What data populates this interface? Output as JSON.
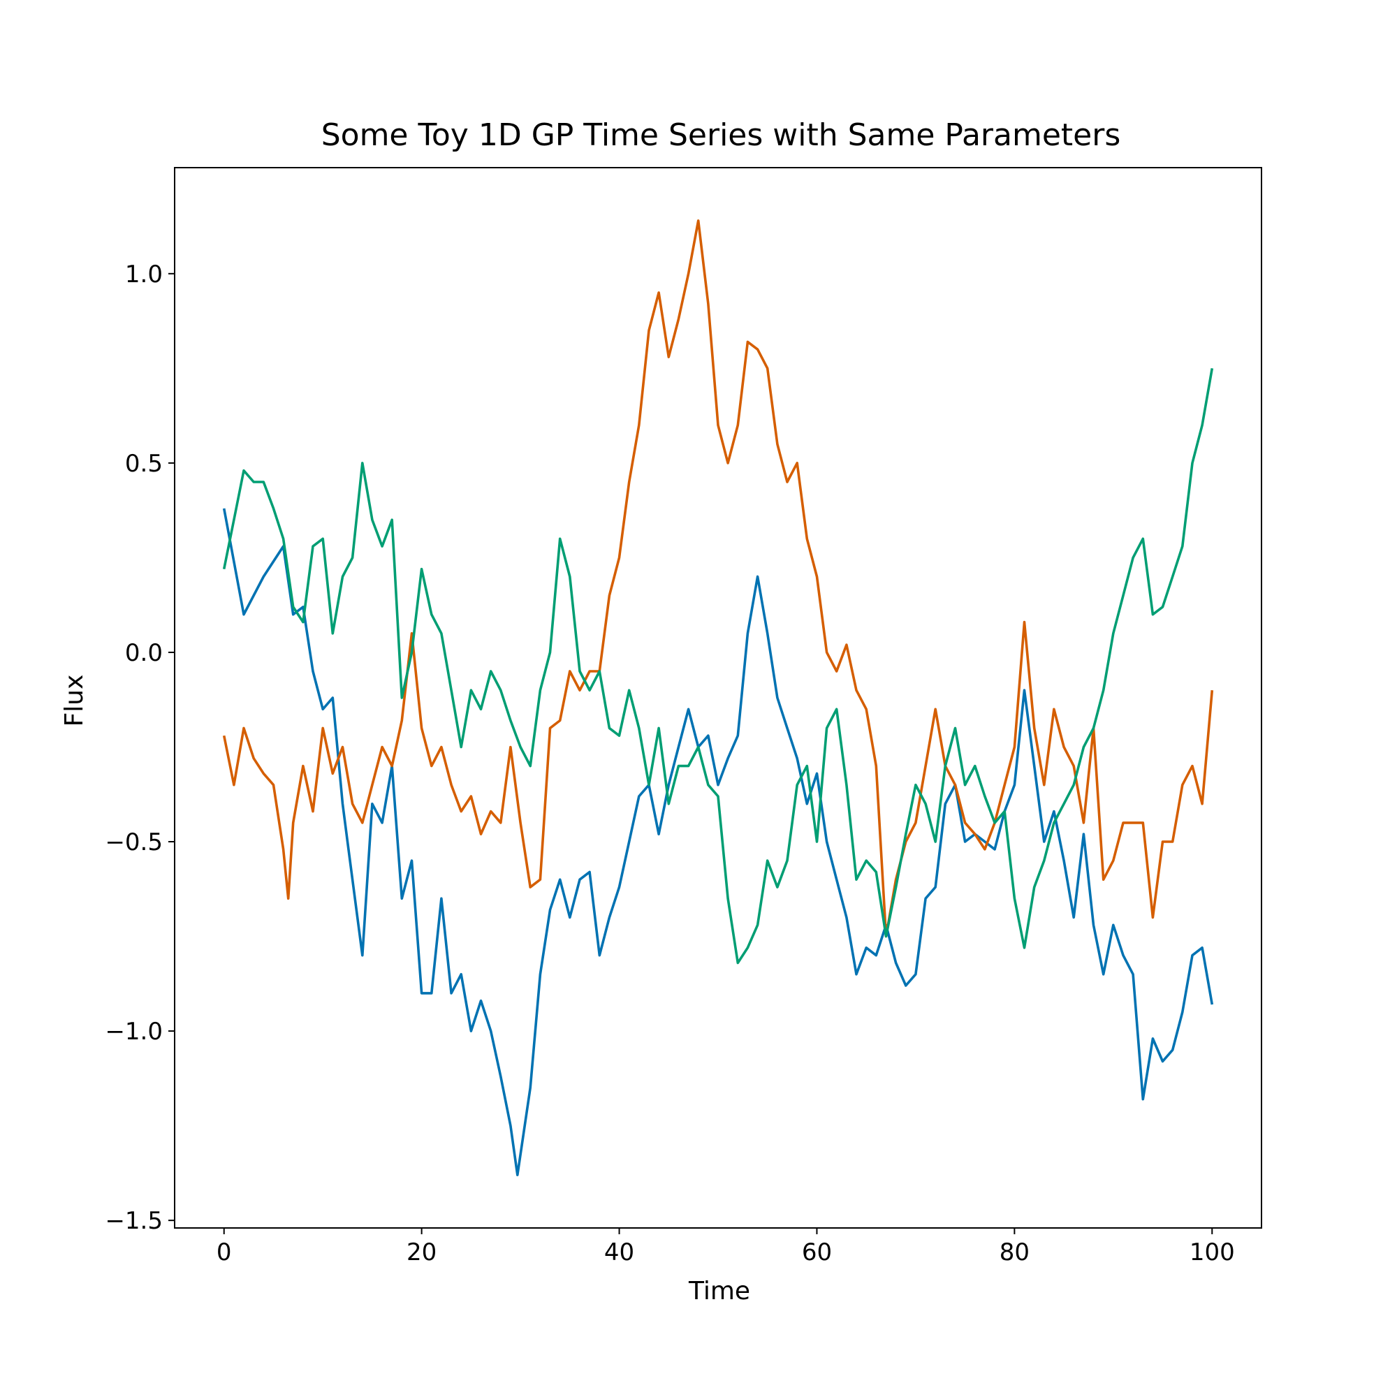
{
  "chart_data": {
    "type": "line",
    "title": "Some Toy 1D GP Time Series with Same Parameters",
    "xlabel": "Time",
    "ylabel": "Flux",
    "xlim": [
      -5,
      105
    ],
    "ylim": [
      -1.52,
      1.28
    ],
    "xticks": [
      0,
      20,
      40,
      60,
      80,
      100
    ],
    "xtick_labels": [
      "0",
      "20",
      "40",
      "60",
      "80",
      "100"
    ],
    "yticks": [
      -1.5,
      -1.0,
      -0.5,
      0.0,
      0.5,
      1.0
    ],
    "ytick_labels": [
      "−1.5",
      "−1.0",
      "−0.5",
      "0.0",
      "0.5",
      "1.0"
    ],
    "grid": false,
    "series": [
      {
        "color": "#0072b2",
        "x": [
          0,
          2,
          4,
          6,
          7,
          8,
          9,
          10,
          11,
          12,
          12.5,
          14,
          15,
          16,
          17,
          18,
          19,
          20,
          21,
          22,
          23,
          24,
          25,
          26,
          27,
          28,
          29,
          29.7,
          31,
          32,
          33,
          34,
          35,
          36,
          37,
          38,
          39,
          40,
          41,
          42,
          43,
          44,
          45,
          46,
          47,
          48,
          49,
          50,
          51,
          52,
          53,
          54,
          55,
          56,
          57,
          58,
          59,
          60,
          61,
          62,
          63,
          64,
          65,
          66,
          67,
          68,
          69,
          70,
          71,
          72,
          73,
          74,
          75,
          76,
          77,
          78,
          79,
          80,
          81,
          82,
          83,
          84,
          85,
          86,
          87,
          88,
          89,
          90,
          91,
          92,
          93,
          94,
          95,
          96,
          97,
          98,
          99,
          100
        ],
        "y": [
          0.38,
          0.1,
          0.2,
          0.28,
          0.1,
          0.12,
          -0.05,
          -0.15,
          -0.12,
          -0.4,
          -0.5,
          -0.8,
          -0.4,
          -0.45,
          -0.3,
          -0.65,
          -0.55,
          -0.9,
          -0.9,
          -0.65,
          -0.9,
          -0.85,
          -1.0,
          -0.92,
          -1.0,
          -1.12,
          -1.25,
          -1.38,
          -1.15,
          -0.85,
          -0.68,
          -0.6,
          -0.7,
          -0.6,
          -0.58,
          -0.8,
          -0.7,
          -0.62,
          -0.5,
          -0.38,
          -0.35,
          -0.48,
          -0.35,
          -0.25,
          -0.15,
          -0.25,
          -0.22,
          -0.35,
          -0.28,
          -0.22,
          0.05,
          0.2,
          0.05,
          -0.12,
          -0.2,
          -0.28,
          -0.4,
          -0.32,
          -0.5,
          -0.6,
          -0.7,
          -0.85,
          -0.78,
          -0.8,
          -0.72,
          -0.82,
          -0.88,
          -0.85,
          -0.65,
          -0.62,
          -0.4,
          -0.35,
          -0.5,
          -0.48,
          -0.5,
          -0.52,
          -0.42,
          -0.35,
          -0.1,
          -0.3,
          -0.5,
          -0.42,
          -0.55,
          -0.7,
          -0.48,
          -0.72,
          -0.85,
          -0.72,
          -0.8,
          -0.85,
          -1.18,
          -1.02,
          -1.08,
          -1.05,
          -0.95,
          -0.8,
          -0.78,
          -0.93
        ]
      },
      {
        "color": "#d55e00",
        "x": [
          0,
          1,
          2,
          3,
          4,
          5,
          6,
          6.5,
          7,
          8,
          9,
          10,
          11,
          12,
          13,
          14,
          15,
          16,
          17,
          18,
          19,
          20,
          21,
          22,
          23,
          24,
          25,
          26,
          27,
          28,
          29,
          30,
          31,
          32,
          33,
          34,
          35,
          36,
          37,
          38,
          39,
          40,
          41,
          42,
          43,
          44,
          45,
          46,
          47,
          48,
          49,
          50,
          51,
          52,
          53,
          54,
          55,
          56,
          57,
          58,
          59,
          60,
          61,
          62,
          63,
          64,
          65,
          66,
          67,
          68,
          69,
          70,
          71,
          72,
          73,
          74,
          75,
          76,
          77,
          78,
          79,
          80,
          81,
          82,
          83,
          84,
          85,
          86,
          87,
          88,
          89,
          90,
          91,
          92,
          93,
          94,
          95,
          96,
          97,
          98,
          99,
          100
        ],
        "y": [
          -0.22,
          -0.35,
          -0.2,
          -0.28,
          -0.32,
          -0.35,
          -0.52,
          -0.65,
          -0.45,
          -0.3,
          -0.42,
          -0.2,
          -0.32,
          -0.25,
          -0.4,
          -0.45,
          -0.35,
          -0.25,
          -0.3,
          -0.18,
          0.05,
          -0.2,
          -0.3,
          -0.25,
          -0.35,
          -0.42,
          -0.38,
          -0.48,
          -0.42,
          -0.45,
          -0.25,
          -0.45,
          -0.62,
          -0.6,
          -0.2,
          -0.18,
          -0.05,
          -0.1,
          -0.05,
          -0.05,
          0.15,
          0.25,
          0.45,
          0.6,
          0.85,
          0.95,
          0.78,
          0.88,
          1.0,
          1.14,
          0.92,
          0.6,
          0.5,
          0.6,
          0.82,
          0.8,
          0.75,
          0.55,
          0.45,
          0.5,
          0.3,
          0.2,
          0.0,
          -0.05,
          0.02,
          -0.1,
          -0.15,
          -0.3,
          -0.75,
          -0.6,
          -0.5,
          -0.45,
          -0.3,
          -0.15,
          -0.3,
          -0.35,
          -0.45,
          -0.48,
          -0.52,
          -0.45,
          -0.35,
          -0.25,
          0.08,
          -0.2,
          -0.35,
          -0.15,
          -0.25,
          -0.3,
          -0.45,
          -0.2,
          -0.6,
          -0.55,
          -0.45,
          -0.45,
          -0.45,
          -0.7,
          -0.5,
          -0.5,
          -0.35,
          -0.3,
          -0.4,
          -0.1
        ]
      },
      {
        "color": "#009e73",
        "x": [
          0,
          1,
          2,
          3,
          4,
          5,
          6,
          7,
          8,
          9,
          10,
          11,
          12,
          13,
          14,
          15,
          16,
          17,
          18,
          19,
          20,
          21,
          22,
          23,
          24,
          25,
          26,
          27,
          28,
          29,
          30,
          31,
          32,
          33,
          34,
          35,
          36,
          37,
          38,
          39,
          40,
          41,
          42,
          43,
          44,
          45,
          46,
          47,
          48,
          49,
          50,
          51,
          52,
          53,
          54,
          55,
          56,
          57,
          58,
          59,
          60,
          61,
          62,
          63,
          64,
          65,
          66,
          67,
          68,
          69,
          70,
          71,
          72,
          73,
          74,
          75,
          76,
          77,
          78,
          79,
          80,
          81,
          82,
          83,
          84,
          85,
          86,
          87,
          88,
          89,
          90,
          91,
          92,
          93,
          94,
          95,
          96,
          97,
          98,
          99,
          100
        ],
        "y": [
          0.22,
          0.35,
          0.48,
          0.45,
          0.45,
          0.38,
          0.3,
          0.12,
          0.08,
          0.28,
          0.3,
          0.05,
          0.2,
          0.25,
          0.5,
          0.35,
          0.28,
          0.35,
          -0.12,
          0.0,
          0.22,
          0.1,
          0.05,
          -0.1,
          -0.25,
          -0.1,
          -0.15,
          -0.05,
          -0.1,
          -0.18,
          -0.25,
          -0.3,
          -0.1,
          0.0,
          0.3,
          0.2,
          -0.05,
          -0.1,
          -0.05,
          -0.2,
          -0.22,
          -0.1,
          -0.2,
          -0.35,
          -0.2,
          -0.4,
          -0.3,
          -0.3,
          -0.25,
          -0.35,
          -0.38,
          -0.65,
          -0.82,
          -0.78,
          -0.72,
          -0.55,
          -0.62,
          -0.55,
          -0.35,
          -0.3,
          -0.5,
          -0.2,
          -0.15,
          -0.35,
          -0.6,
          -0.55,
          -0.58,
          -0.75,
          -0.62,
          -0.48,
          -0.35,
          -0.4,
          -0.5,
          -0.3,
          -0.2,
          -0.35,
          -0.3,
          -0.38,
          -0.45,
          -0.42,
          -0.65,
          -0.78,
          -0.62,
          -0.55,
          -0.45,
          -0.4,
          -0.35,
          -0.25,
          -0.2,
          -0.1,
          0.05,
          0.15,
          0.25,
          0.3,
          0.1,
          0.12,
          0.2,
          0.28,
          0.5,
          0.6,
          0.75
        ]
      }
    ]
  }
}
